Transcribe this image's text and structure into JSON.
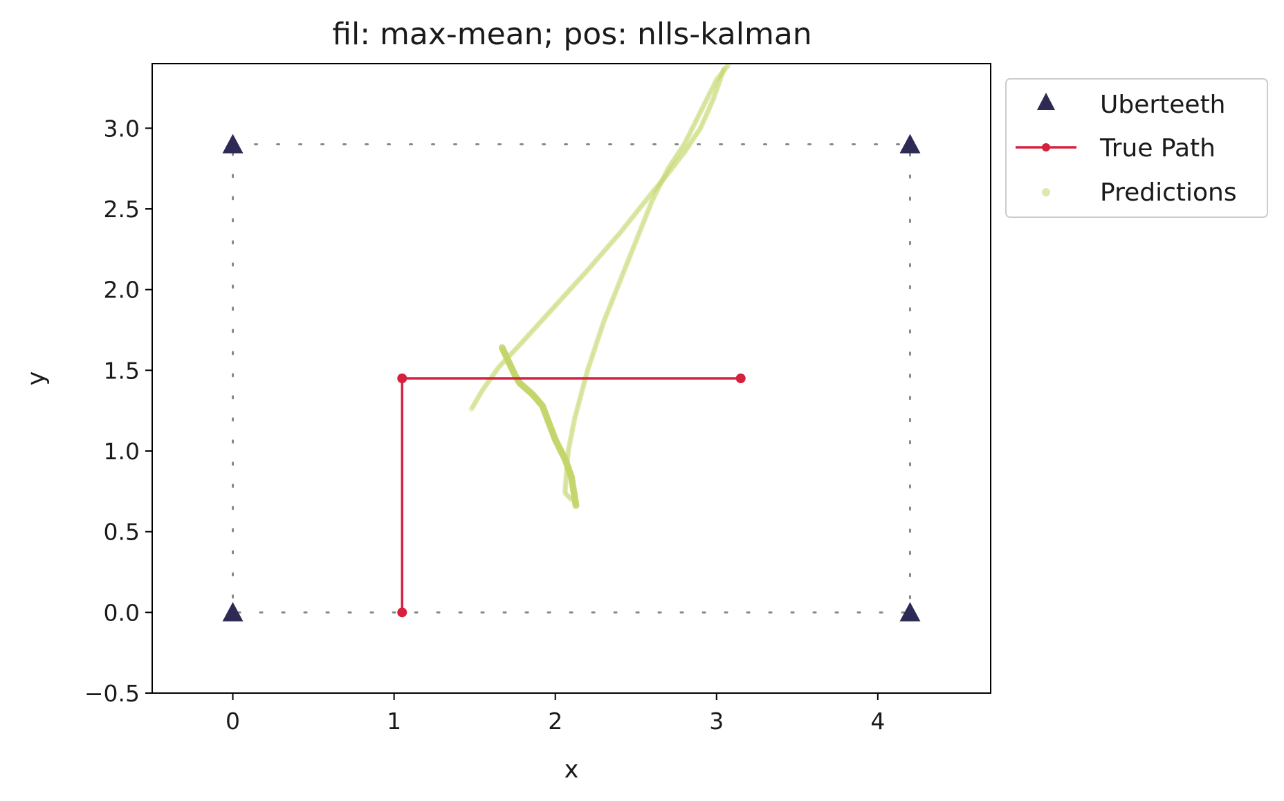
{
  "chart_data": {
    "type": "scatter",
    "title": "fil: max-mean; pos: nlls-kalman",
    "xlabel": "x",
    "ylabel": "y",
    "xlim": [
      -0.5,
      4.7
    ],
    "ylim": [
      -0.5,
      3.4
    ],
    "xticks": [
      0,
      1,
      2,
      3,
      4
    ],
    "yticks": [
      -0.5,
      0.0,
      0.5,
      1.0,
      1.5,
      2.0,
      2.5,
      3.0
    ],
    "xtick_labels": [
      "0",
      "1",
      "2",
      "3",
      "4"
    ],
    "ytick_labels": [
      "−0.5",
      "0.0",
      "0.5",
      "1.0",
      "1.5",
      "2.0",
      "2.5",
      "3.0"
    ],
    "grid": false,
    "legend_placement": "outside-upper-right",
    "colors": {
      "uberteeth": "#2d2b55",
      "true_path": "#d4213d",
      "predictions": "#c3d66b",
      "boundary": "#888888"
    },
    "boundary": [
      [
        0,
        2.9
      ],
      [
        4.2,
        2.9
      ],
      [
        4.2,
        0
      ],
      [
        0,
        0
      ],
      [
        0,
        2.9
      ]
    ],
    "series": [
      {
        "name": "Uberteeth",
        "marker": "triangle",
        "points": [
          [
            0,
            2.9
          ],
          [
            4.2,
            2.9
          ],
          [
            0,
            0
          ],
          [
            4.2,
            0
          ]
        ]
      },
      {
        "name": "True Path",
        "marker": "line-dot",
        "points": [
          [
            1.05,
            0
          ],
          [
            1.05,
            1.45
          ],
          [
            3.15,
            1.45
          ]
        ]
      },
      {
        "name": "Predictions",
        "marker": "dot",
        "segments": [
          [
            [
              1.48,
              1.26
            ],
            [
              1.55,
              1.38
            ],
            [
              1.65,
              1.52
            ],
            [
              1.8,
              1.68
            ],
            [
              2.0,
              1.9
            ],
            [
              2.2,
              2.12
            ],
            [
              2.4,
              2.35
            ],
            [
              2.6,
              2.6
            ],
            [
              2.7,
              2.72
            ],
            [
              2.8,
              2.85
            ],
            [
              2.9,
              3.0
            ],
            [
              2.98,
              3.18
            ],
            [
              3.05,
              3.38
            ]
          ],
          [
            [
              1.67,
              1.64
            ],
            [
              1.75,
              1.47
            ],
            [
              1.78,
              1.42
            ],
            [
              1.86,
              1.35
            ],
            [
              1.92,
              1.28
            ],
            [
              2.0,
              1.07
            ],
            [
              2.06,
              0.95
            ],
            [
              2.1,
              0.84
            ],
            [
              2.13,
              0.65
            ]
          ],
          [
            [
              2.1,
              0.7
            ],
            [
              2.06,
              0.74
            ],
            [
              2.08,
              1.0
            ],
            [
              2.12,
              1.2
            ],
            [
              2.2,
              1.5
            ],
            [
              2.3,
              1.8
            ],
            [
              2.4,
              2.05
            ],
            [
              2.5,
              2.3
            ],
            [
              2.6,
              2.55
            ],
            [
              2.7,
              2.75
            ],
            [
              2.8,
              2.9
            ],
            [
              2.9,
              3.1
            ],
            [
              3.0,
              3.3
            ],
            [
              3.08,
              3.4
            ]
          ]
        ]
      }
    ]
  }
}
